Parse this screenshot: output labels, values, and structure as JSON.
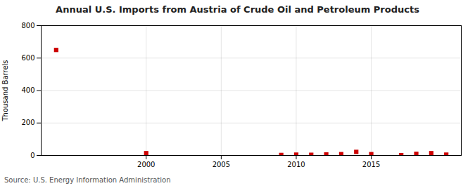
{
  "chart_data": {
    "type": "scatter",
    "title": "Annual U.S. Imports from Austria of Crude Oil and Petroleum Products",
    "ylabel": "Thousand Barrels",
    "annotations": [
      "Source: U.S. Energy Information Administration"
    ],
    "x": [
      1994,
      2000,
      2009,
      2010,
      2011,
      2012,
      2013,
      2014,
      2015,
      2017,
      2018,
      2019,
      2020
    ],
    "values": [
      650,
      14,
      3,
      5,
      4,
      6,
      8,
      22,
      8,
      2,
      10,
      14,
      5
    ],
    "color": "#cc0000",
    "marker": "square",
    "xlim": [
      1993,
      2021
    ],
    "xticks": [
      2000,
      2005,
      2010,
      2015
    ],
    "ylim": [
      0,
      800
    ],
    "yticks": [
      0,
      200,
      400,
      600,
      800
    ],
    "grid": true
  }
}
